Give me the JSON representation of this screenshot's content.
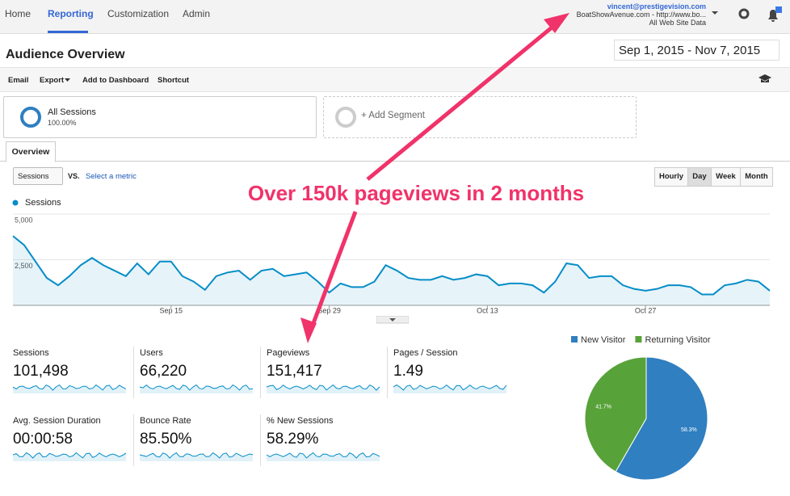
{
  "nav": {
    "tabs": [
      "Home",
      "Reporting",
      "Customization",
      "Admin"
    ],
    "email": "vincent@prestigevision.com",
    "site": "BoatShowAvenue.com - http://www.bo...",
    "view": "All Web Site Data"
  },
  "header": {
    "title": "Audience Overview",
    "date_start": "Sep 1, 2015",
    "date_separator": "-",
    "date_end": "Nov 7, 2015"
  },
  "toolbar": [
    "Email",
    "Export",
    "Add to Dashboard",
    "Shortcut"
  ],
  "segments": {
    "active": {
      "name": "All Sessions",
      "percent": "100.00%"
    },
    "add": "+ Add Segment"
  },
  "tab": "Overview",
  "controls": {
    "metric": "Sessions",
    "vs": "VS.",
    "select_metric": "Select a metric",
    "granularity": [
      "Hourly",
      "Day",
      "Week",
      "Month"
    ]
  },
  "annotation": "Over 150k pageviews in 2 months",
  "chart_data": [
    {
      "type": "line",
      "categories": [
        null,
        null,
        null,
        null,
        null,
        null,
        null,
        null,
        null,
        null,
        null,
        null,
        null,
        null,
        "Sep 15",
        null,
        null,
        null,
        null,
        null,
        null,
        null,
        null,
        null,
        null,
        null,
        null,
        null,
        "Sep 29",
        null,
        null,
        null,
        null,
        null,
        null,
        null,
        null,
        null,
        null,
        null,
        null,
        null,
        "Oct 13",
        null,
        null,
        null,
        null,
        null,
        null,
        null,
        null,
        null,
        null,
        null,
        null,
        null,
        "Oct 27",
        null,
        null,
        null,
        null,
        null,
        null,
        null,
        null,
        null,
        null,
        null
      ],
      "series": [
        {
          "name": "Sessions",
          "color": "#058dc7",
          "values": [
            3800,
            3300,
            2400,
            1500,
            1100,
            1600,
            2200,
            2600,
            2200,
            1900,
            1600,
            2300,
            1700,
            2400,
            2400,
            1600,
            1300,
            850,
            1600,
            1800,
            1900,
            1400,
            1900,
            2000,
            1600,
            1700,
            1800,
            1300,
            700,
            1200,
            1000,
            1000,
            1300,
            2200,
            1900,
            1500,
            1400,
            1400,
            1600,
            1400,
            1500,
            1700,
            1600,
            1100,
            1200,
            1200,
            1100,
            700,
            1300,
            2300,
            2200,
            1500,
            1600,
            1600,
            1100,
            900,
            800,
            900,
            1100,
            1100,
            1000,
            600,
            600,
            1100,
            1200,
            1400,
            1300,
            800
          ]
        }
      ],
      "ylim": [
        0,
        5000
      ],
      "yticks": [
        {
          "value": 2500,
          "label": "2,500"
        },
        {
          "value": 5000,
          "label": "5,000"
        }
      ],
      "grid": true
    },
    {
      "type": "pie",
      "categories": [
        "New Visitor",
        "Returning Visitor"
      ],
      "values": [
        58.3,
        41.7
      ],
      "value_labels": [
        "58.3%",
        "41.7%"
      ],
      "colors": [
        "#2f7fc1",
        "#58a23a"
      ]
    }
  ],
  "metrics": [
    {
      "label": "Sessions",
      "value": "101,498"
    },
    {
      "label": "Users",
      "value": "66,220"
    },
    {
      "label": "Pageviews",
      "value": "151,417"
    },
    {
      "label": "Pages / Session",
      "value": "1.49"
    },
    {
      "label": "Avg. Session Duration",
      "value": "00:00:58"
    },
    {
      "label": "Bounce Rate",
      "value": "85.50%"
    },
    {
      "label": "% New Sessions",
      "value": "58.29%"
    }
  ]
}
